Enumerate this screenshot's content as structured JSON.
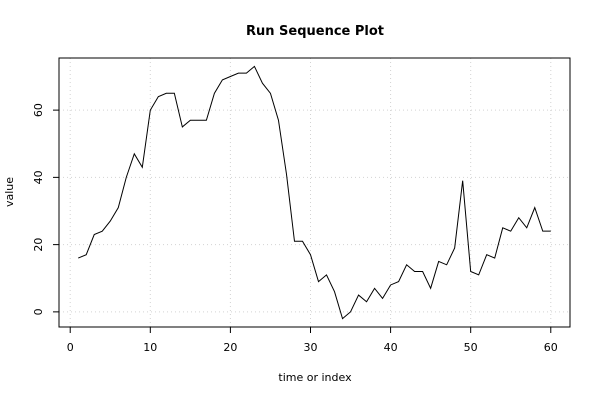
{
  "chart_data": {
    "type": "line",
    "title": "Run Sequence Plot",
    "xlabel": "time or index",
    "ylabel": "value",
    "xlim": [
      -1.4,
      62.4
    ],
    "ylim": [
      -4.5,
      75.5
    ],
    "xticks": [
      0,
      10,
      20,
      30,
      40,
      50,
      60
    ],
    "yticks": [
      0,
      20,
      40,
      60
    ],
    "grid": true,
    "line_color": "#000000",
    "grid_color": "#d3d3d3",
    "x": [
      1,
      2,
      3,
      4,
      5,
      6,
      7,
      8,
      9,
      10,
      11,
      12,
      13,
      14,
      15,
      16,
      17,
      18,
      19,
      20,
      21,
      22,
      23,
      24,
      25,
      26,
      27,
      28,
      29,
      30,
      31,
      32,
      33,
      34,
      35,
      36,
      37,
      38,
      39,
      40,
      41,
      42,
      43,
      44,
      45,
      46,
      47,
      48,
      49,
      50,
      51,
      52,
      53,
      54,
      55,
      56,
      57,
      58,
      59,
      60
    ],
    "y": [
      16,
      17,
      23,
      24,
      27,
      31,
      40,
      47,
      43,
      60,
      64,
      65,
      65,
      55,
      57,
      57,
      57,
      65,
      69,
      70,
      71,
      71,
      73,
      68,
      65,
      57,
      41,
      21,
      21,
      17,
      9,
      11,
      6,
      -2,
      0,
      5,
      3,
      7,
      4,
      8,
      9,
      14,
      12,
      12,
      7,
      15,
      14,
      19,
      39,
      12,
      11,
      17,
      16,
      25,
      24,
      28,
      25,
      31,
      24,
      24
    ]
  }
}
